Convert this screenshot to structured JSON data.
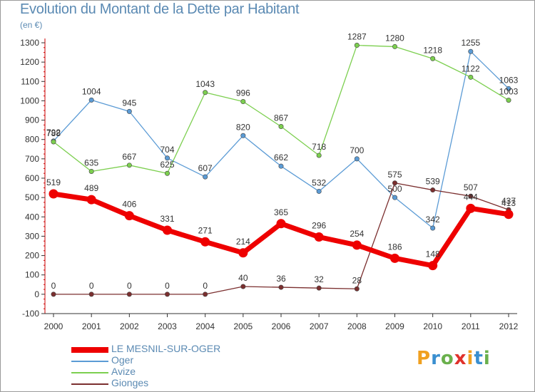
{
  "header": {
    "title": "Evolution du Montant de la Dette par Habitant",
    "unit": "(en €)"
  },
  "logo": {
    "letters": [
      "P",
      "r",
      "o",
      "x",
      "i",
      "t",
      "i"
    ],
    "colors": [
      "#f0a020",
      "#3a8fd0",
      "#6ab04c",
      "#e0312c",
      "#f0a020",
      "#3a8fd0",
      "#6ab04c"
    ]
  },
  "chart_data": {
    "type": "line",
    "title": "Evolution du Montant de la Dette par Habitant",
    "ylabel": "(en €)",
    "xlabel": "",
    "ylim": [
      -100,
      1300
    ],
    "yticks": [
      -100,
      0,
      100,
      200,
      300,
      400,
      500,
      600,
      700,
      800,
      900,
      1000,
      1100,
      1200,
      1300
    ],
    "x": [
      "2000",
      "2001",
      "2002",
      "2003",
      "2004",
      "2005",
      "2006",
      "2007",
      "2008",
      "2009",
      "2010",
      "2011",
      "2012"
    ],
    "grid": false,
    "legend": "bottom-left",
    "series": [
      {
        "name": "LE MESNIL-SUR-OGER",
        "color": "#ee0000",
        "values": [
          519,
          489,
          406,
          331,
          271,
          214,
          365,
          296,
          254,
          186,
          148,
          444,
          413
        ]
      },
      {
        "name": "Oger",
        "color": "#5b9bd5",
        "values": [
          792,
          1004,
          945,
          704,
          607,
          820,
          662,
          532,
          700,
          500,
          342,
          1255,
          1063
        ]
      },
      {
        "name": "Avize",
        "color": "#7ccf4f",
        "values": [
          788,
          635,
          667,
          625,
          1043,
          996,
          867,
          718,
          1287,
          1280,
          1218,
          1122,
          1003
        ]
      },
      {
        "name": "Gionges",
        "color": "#7b2f2f",
        "values": [
          0,
          0,
          0,
          0,
          0,
          40,
          36,
          32,
          28,
          575,
          539,
          507,
          437
        ]
      }
    ]
  }
}
